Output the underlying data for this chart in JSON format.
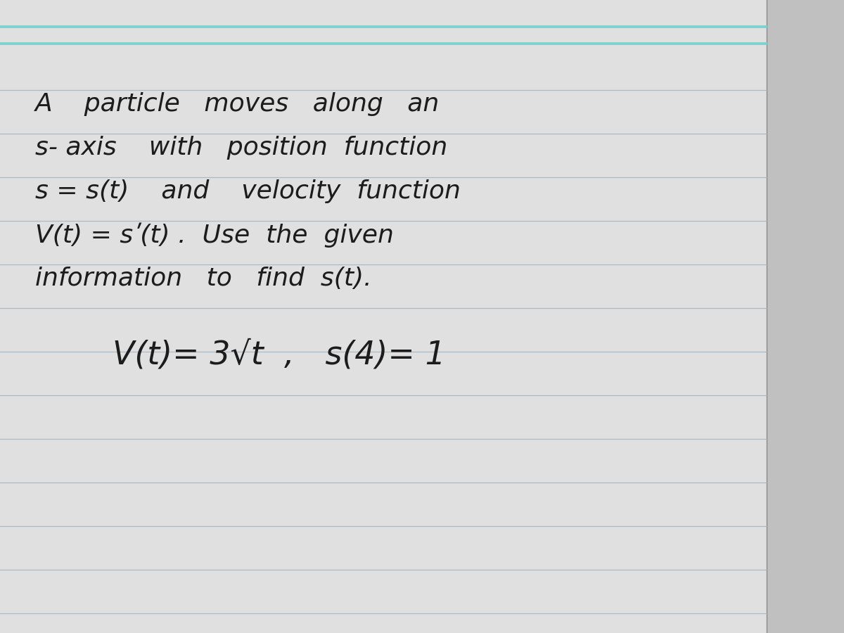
{
  "bg_outer": "#b8b8b8",
  "bg_paper": "#e0e0e0",
  "line_color_ruled": "#9aacb8",
  "teal_line": "#6fcfcf",
  "text_dark": "#1c1c1c",
  "right_col_bg": "#c0c0c0",
  "figsize": [
    12.0,
    9.0
  ],
  "dpi": 100,
  "lines": [
    "A    particle   moves   along   an",
    "s- axis    with   position  function",
    "s = s(t)    and    velocity  function",
    "V(t) = sʹ(t) .  Use  the  given",
    "information   to   find  s(t).",
    "V(t)= 3√t  ,   s(4)= 1"
  ],
  "line_y_positions": [
    7.52,
    6.9,
    6.28,
    5.66,
    5.04,
    3.95
  ],
  "line_x_positions": [
    0.5,
    0.5,
    0.5,
    0.5,
    0.5,
    1.6
  ],
  "line_fontsizes": [
    26,
    26,
    26,
    26,
    26,
    33
  ]
}
